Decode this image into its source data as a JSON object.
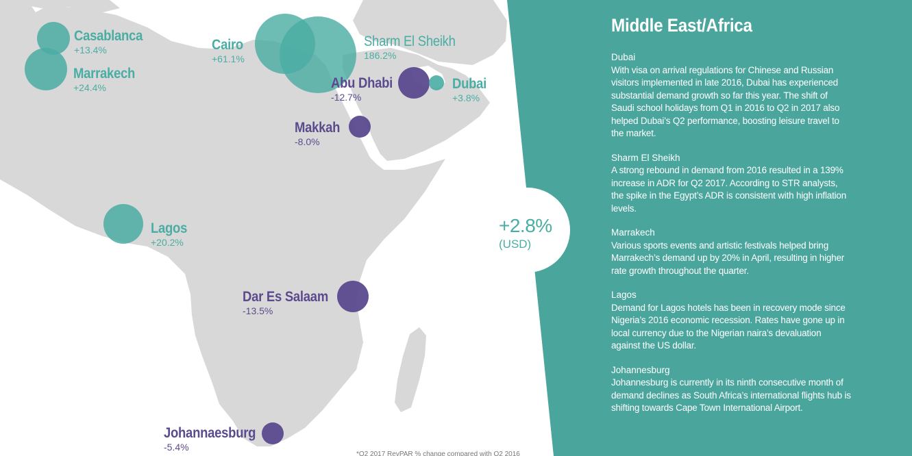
{
  "title": "Middle East/Africa",
  "colors": {
    "teal": "#4aada3",
    "purple": "#5c4a8e",
    "land": "#d8d8d8",
    "panel": "#4aa59d",
    "white": "#ffffff"
  },
  "cities": {
    "casablanca": {
      "name": "Casablanca",
      "change": "+13.4%",
      "trend": "up",
      "color": "teal"
    },
    "marrakech": {
      "name": "Marrakech",
      "change": "+24.4%",
      "trend": "up",
      "color": "teal"
    },
    "cairo": {
      "name": "Cairo",
      "change": "+61.1%",
      "trend": "up",
      "color": "teal"
    },
    "sharm": {
      "name": "Sharm El Sheikh",
      "change": "186.2%",
      "trend": "up",
      "color": "teal"
    },
    "abu_dhabi": {
      "name": "Abu Dhabi",
      "change": "-12.7%",
      "trend": "down",
      "color": "purple"
    },
    "dubai": {
      "name": "Dubai",
      "change": "+3.8%",
      "trend": "up",
      "color": "teal"
    },
    "makkah": {
      "name": "Makkah",
      "change": "-8.0%",
      "trend": "down",
      "color": "purple"
    },
    "lagos": {
      "name": "Lagos",
      "change": "+20.2%",
      "trend": "up",
      "color": "teal"
    },
    "dar": {
      "name": "Dar Es Salaam",
      "change": "-13.5%",
      "trend": "down",
      "color": "purple"
    },
    "johannesburg": {
      "name": "Johannaesburg",
      "change": "-5.4%",
      "trend": "down",
      "color": "purple"
    }
  },
  "region_total": {
    "value": "+2.8%",
    "currency": "(USD)"
  },
  "sections": [
    {
      "heading": "Dubai",
      "body": "With visa on arrival regulations for Chinese and Russian visitors implemented in late 2016, Dubai has experienced substantial demand growth so far this year. The shift of Saudi school holidays from Q1 in 2016 to Q2 in 2017 also helped Dubai’s Q2 performance, boosting leisure travel to the market."
    },
    {
      "heading": "Sharm El Sheikh",
      "body": "A strong rebound in demand from 2016 resulted in a 139% increase in ADR for Q2 2017. According to STR analysts, the spike in the Egypt’s ADR is consistent with high inflation levels."
    },
    {
      "heading": "Marrakech",
      "body": "Various sports events and artistic festivals helped bring Marrakech’s demand up by 20% in April, resulting in higher rate growth throughout the quarter."
    },
    {
      "heading": "Lagos",
      "body": "Demand for Lagos hotels has been in recovery mode since Nigeria’s 2016 economic recession. Rates have gone up in local currency due to the Nigerian naira’s devaluation against the US dollar."
    },
    {
      "heading": "Johannesburg",
      "body": "Johannesburg is currently in its ninth consecutive month of demand declines as South Africa’s international flights hub is shifting towards Cape Town International Airport."
    }
  ],
  "footnote": "*Q2 2017 RevPAR % change compared with Q2 2016"
}
